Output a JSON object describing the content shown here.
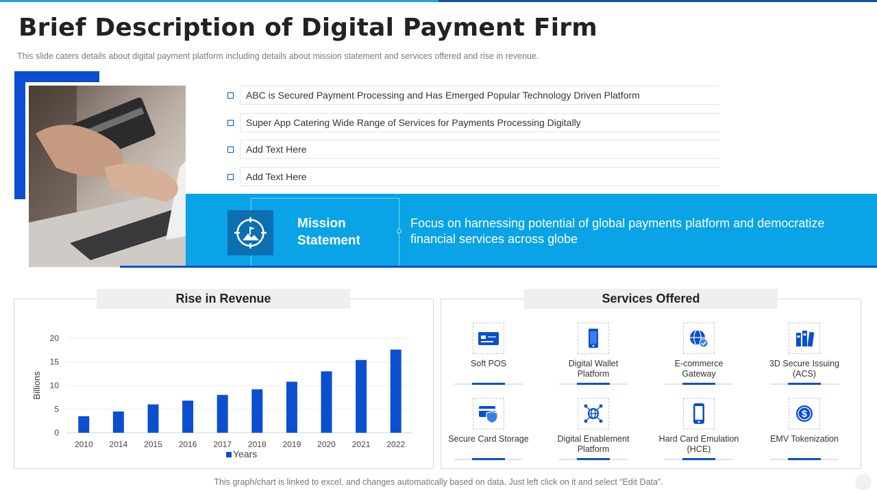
{
  "title": "Brief Description of Digital Payment Firm",
  "subtitle": "This slide caters details about digital payment platform including details about mission statement and services offered  and rise in revenue.",
  "bullets": [
    "ABC is Secured Payment Processing  and Has Emerged Popular Technology Driven Platform",
    "Super App Catering Wide Range of Services for Payments Processing Digitally",
    "Add Text Here",
    "Add Text Here"
  ],
  "mission": {
    "label": "Mission Statement",
    "text": "Focus on harnessing potential of global payments platform and democratize financial services across globe",
    "icon": "target-flag-icon"
  },
  "revenue_panel": {
    "title": "Rise in Revenue"
  },
  "services_panel": {
    "title": "Services Offered",
    "items": [
      {
        "label": "Soft POS",
        "icon": "card-pos-icon"
      },
      {
        "label": "Digital Wallet Platform",
        "icon": "mobile-wallet-icon"
      },
      {
        "label": "E-commerce Gateway",
        "icon": "globe-check-icon"
      },
      {
        "label": "3D Secure Issuing (ACS)",
        "icon": "binders-icon"
      },
      {
        "label": "Secure Card Storage",
        "icon": "card-shield-icon"
      },
      {
        "label": "Digital Enablement Platform",
        "icon": "network-globe-icon"
      },
      {
        "label": "Hard Card Emulation (HCE)",
        "icon": "smartphone-icon"
      },
      {
        "label": "EMV Tokenization",
        "icon": "dollar-coin-icon"
      }
    ]
  },
  "colors": {
    "accent_dark": "#0b4fd0",
    "accent_light": "#0aa3e6",
    "bar": "#0b4fd0"
  },
  "chart_data": {
    "type": "bar",
    "categories": [
      "2010",
      "2014",
      "2015",
      "2016",
      "2017",
      "2018",
      "2019",
      "2020",
      "2021",
      "2022"
    ],
    "series": [
      {
        "name": "Years",
        "values": [
          3.5,
          4.5,
          6,
          6.8,
          8,
          9.2,
          10.8,
          13,
          15.4,
          17.6
        ]
      }
    ],
    "ylabel": "Billions",
    "xlabel": "",
    "ylim": [
      0,
      20
    ],
    "yticks": [
      0,
      5,
      10,
      15,
      20
    ],
    "grid": true,
    "legend": "bottom"
  },
  "footnote": "This graph/chart is linked to excel, and changes automatically based on data. Just left click on it and select “Edit Data”."
}
